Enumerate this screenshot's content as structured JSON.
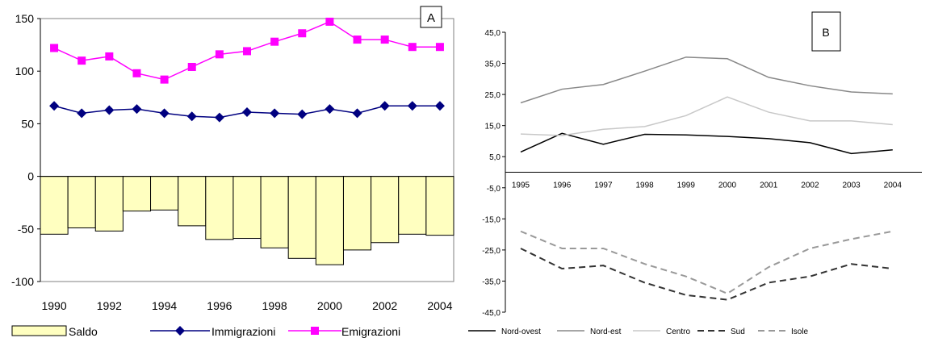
{
  "chart_data": [
    {
      "type": "bar+line",
      "panel_label": "A",
      "categories": [
        "1990",
        "1991",
        "1992",
        "1993",
        "1994",
        "1995",
        "1996",
        "1997",
        "1998",
        "1999",
        "2000",
        "2001",
        "2002",
        "2003",
        "2004"
      ],
      "x_tick_labels": [
        "1990",
        "1992",
        "1994",
        "1996",
        "1998",
        "2000",
        "2002",
        "2004"
      ],
      "y_tick_labels": [
        "150",
        "100",
        "50",
        "0",
        "-50",
        "-100"
      ],
      "ylim": [
        -100,
        150
      ],
      "series": [
        {
          "name": "Saldo",
          "kind": "bar",
          "color": "#ffffc0",
          "values": [
            -55,
            -49,
            -52,
            -33,
            -32,
            -47,
            -60,
            -59,
            -68,
            -78,
            -84,
            -70,
            -63,
            -55,
            -56
          ]
        },
        {
          "name": "Immigrazioni",
          "kind": "line",
          "marker": "diamond",
          "color": "#000080",
          "values": [
            67,
            60,
            63,
            64,
            60,
            57,
            56,
            61,
            60,
            59,
            64,
            60,
            67,
            67,
            67
          ]
        },
        {
          "name": "Emigrazioni",
          "kind": "line",
          "marker": "square",
          "color": "#ff00ff",
          "values": [
            122,
            110,
            114,
            98,
            92,
            104,
            116,
            119,
            128,
            136,
            147,
            130,
            130,
            123,
            123
          ]
        }
      ]
    },
    {
      "type": "line",
      "panel_label": "B",
      "categories": [
        "1995",
        "1996",
        "1997",
        "1998",
        "1999",
        "2000",
        "2001",
        "2002",
        "2003",
        "2004"
      ],
      "y_tick_labels": [
        "45,0",
        "35,0",
        "25,0",
        "15,0",
        "5,0",
        "-5,0",
        "-15,0",
        "-25,0",
        "-35,0",
        "-45,0"
      ],
      "ylim": [
        -45,
        45
      ],
      "series": [
        {
          "name": "Nord-ovest",
          "color": "#000000",
          "dash": "solid",
          "values": [
            6.5,
            12.5,
            9,
            12.2,
            12,
            11.5,
            10.8,
            9.5,
            6,
            7.2
          ]
        },
        {
          "name": "Nord-est",
          "color": "#888888",
          "dash": "solid",
          "values": [
            22.3,
            26.7,
            28.2,
            32.5,
            37,
            36.5,
            30.5,
            27.8,
            25.8,
            25.2
          ]
        },
        {
          "name": "Centro",
          "color": "#c8c8c8",
          "dash": "solid",
          "values": [
            12.3,
            11.8,
            13.8,
            14.7,
            18.2,
            24.2,
            19.3,
            16.5,
            16.5,
            15.3
          ]
        },
        {
          "name": "Sud",
          "color": "#333333",
          "dash": "dashed",
          "values": [
            -24.5,
            -31,
            -30,
            -35.5,
            -39.5,
            -41,
            -35.5,
            -33.5,
            -29.5,
            -31
          ]
        },
        {
          "name": "Isole",
          "color": "#999999",
          "dash": "dashed",
          "values": [
            -19,
            -24.5,
            -24.5,
            -29.5,
            -33.5,
            -39,
            -30.5,
            -24.5,
            -21.5,
            -19
          ]
        }
      ]
    }
  ]
}
